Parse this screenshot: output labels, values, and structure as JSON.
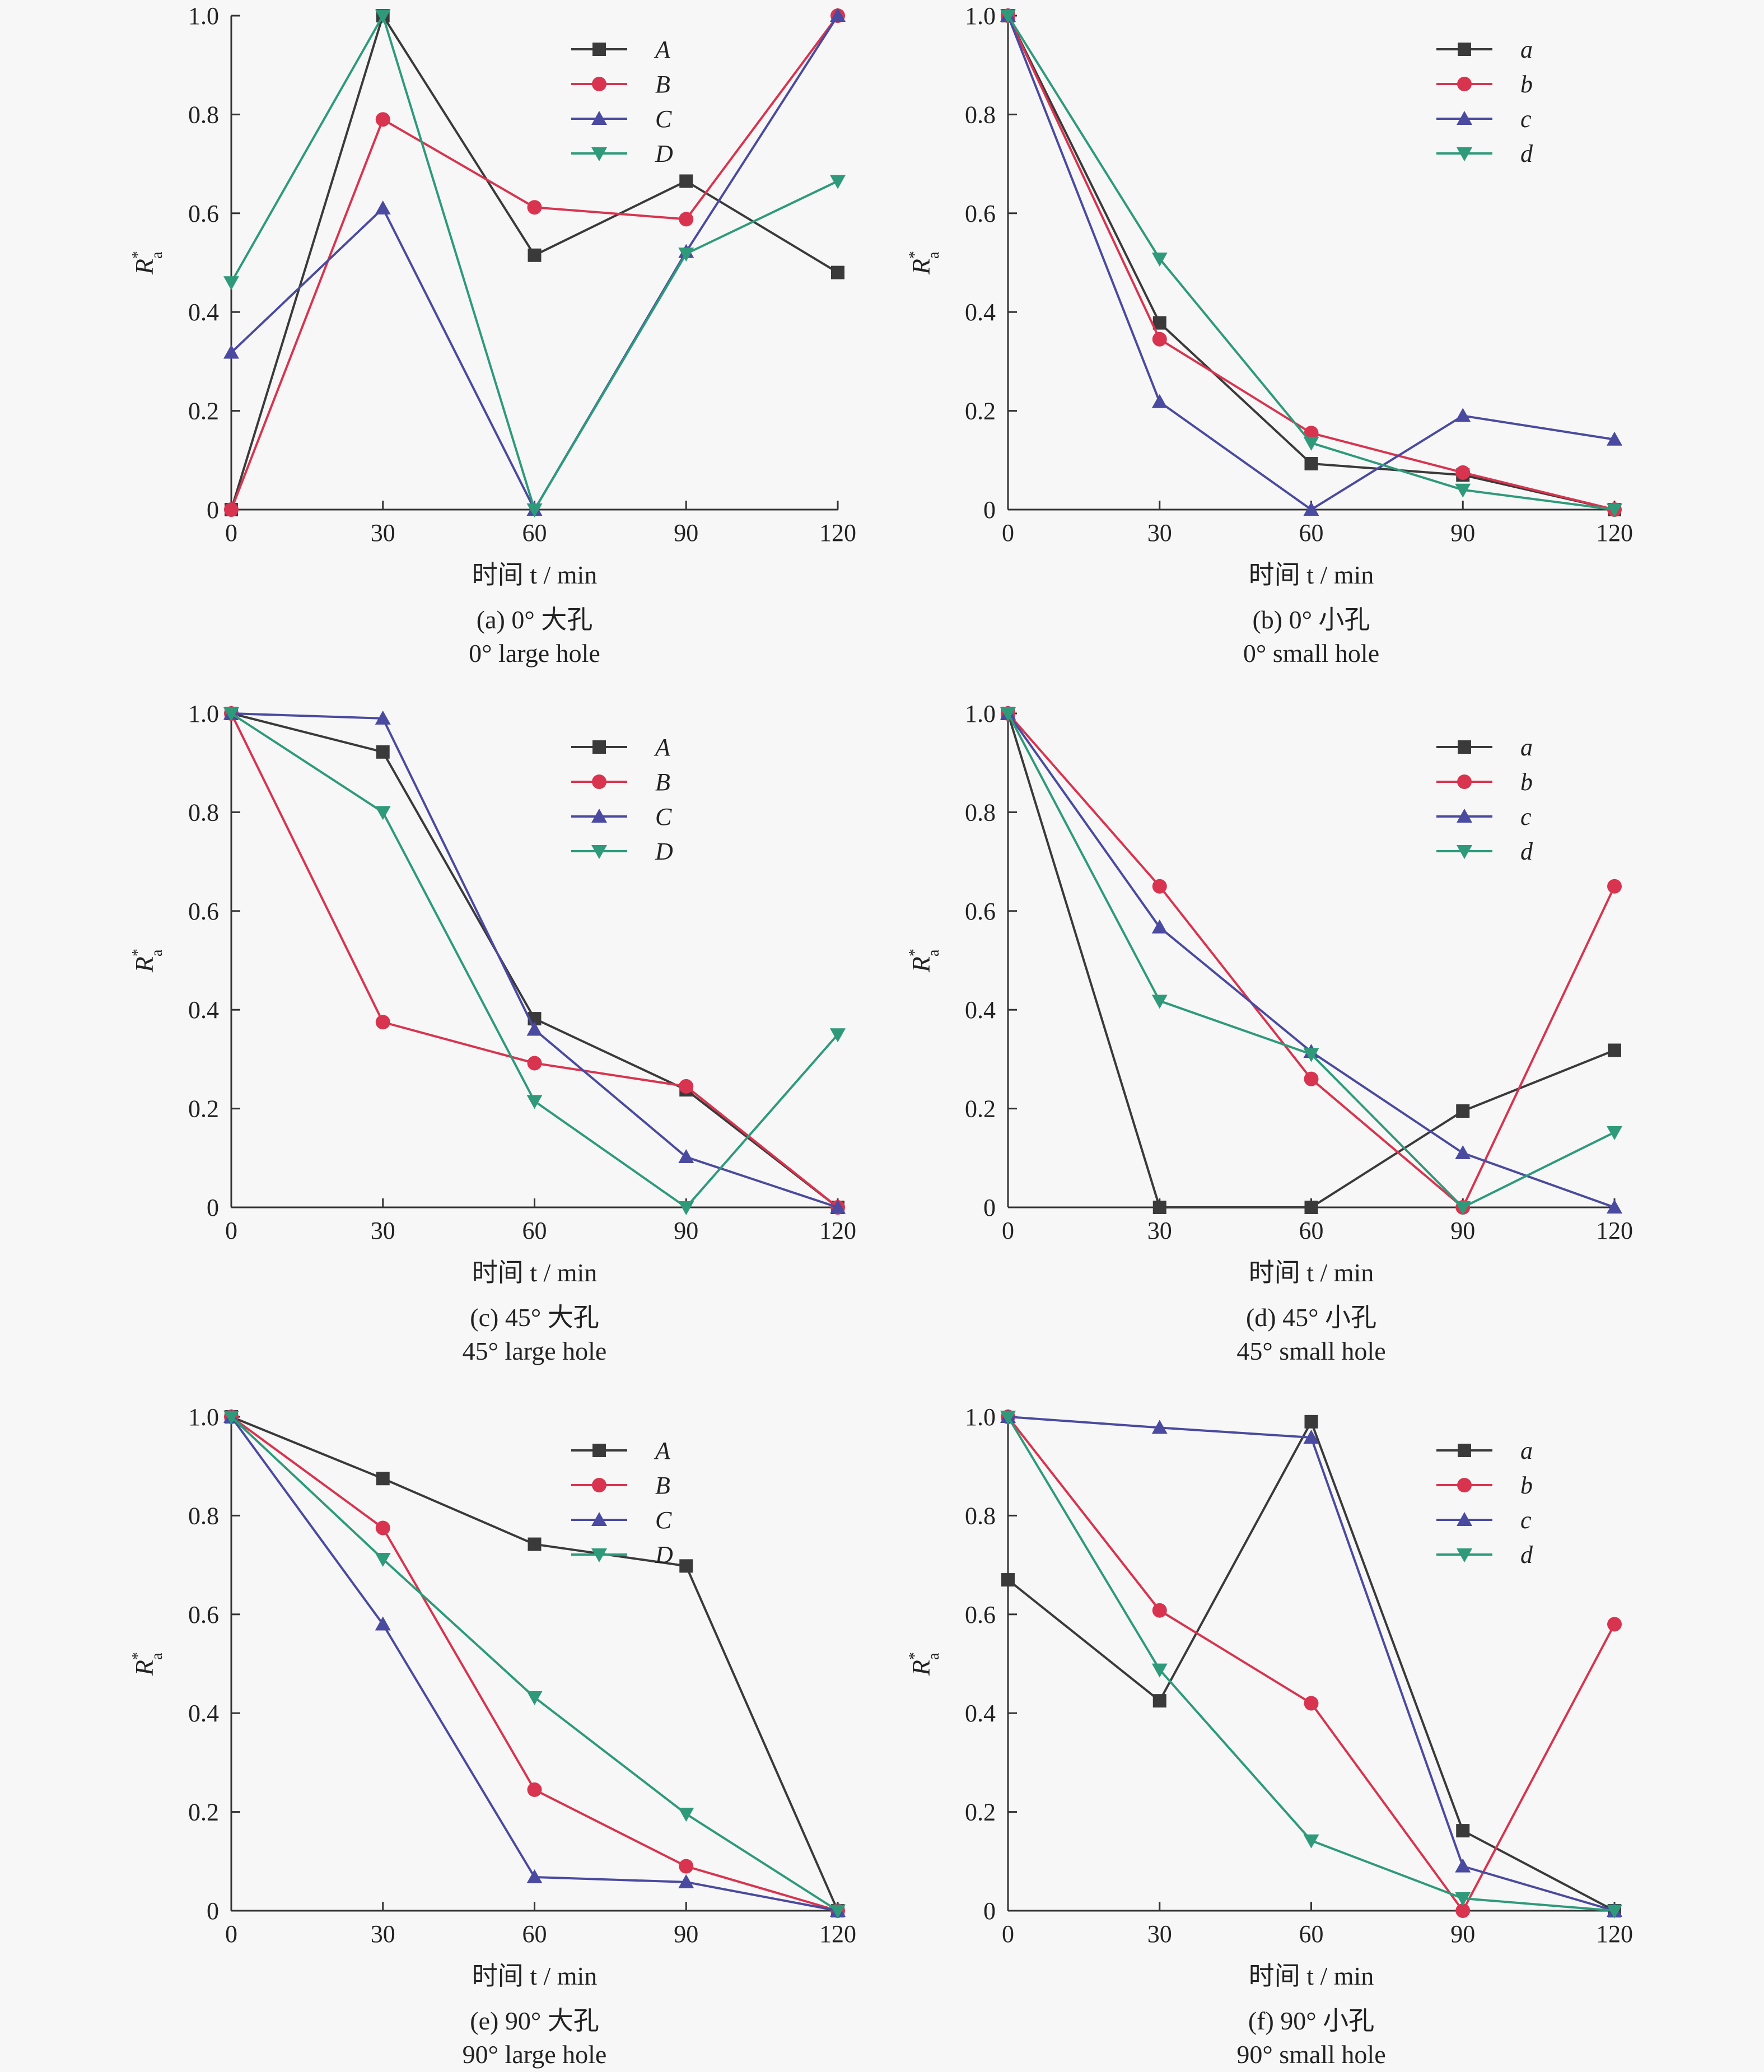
{
  "panel_layout": "3 rows x 2 columns",
  "chart_data": [
    {
      "type": "line",
      "caption_cn": "(a) 0° 大孔",
      "caption_en": "0° large hole",
      "xlabel": "时间 t / min",
      "ylabel": "R*a",
      "x": [
        0,
        30,
        60,
        90,
        120
      ],
      "xticks": [
        "0",
        "30",
        "60",
        "90",
        "120"
      ],
      "yticks": [
        "0",
        "0.2",
        "0.4",
        "0.6",
        "0.8",
        "1.0"
      ],
      "xlim": [
        0,
        120
      ],
      "ylim": [
        0,
        1.0
      ],
      "grid": false,
      "legend_position": "top-center",
      "series": [
        {
          "name": "A",
          "color": "#3a3a3a",
          "marker": "square",
          "values": [
            0,
            1.0,
            0.515,
            0.665,
            0.48
          ]
        },
        {
          "name": "B",
          "color": "#d8344f",
          "marker": "circle",
          "values": [
            0,
            0.79,
            0.612,
            0.588,
            1.0
          ]
        },
        {
          "name": "C",
          "color": "#4a4aa0",
          "marker": "triangle-up",
          "values": [
            0.318,
            0.61,
            0,
            0.522,
            1.0
          ]
        },
        {
          "name": "D",
          "color": "#2e9a7a",
          "marker": "triangle-down",
          "values": [
            0.46,
            1.0,
            0,
            0.518,
            0.665
          ]
        }
      ]
    },
    {
      "type": "line",
      "caption_cn": "(b) 0° 小孔",
      "caption_en": "0° small hole",
      "xlabel": "时间 t / min",
      "ylabel": "R*a",
      "x": [
        0,
        30,
        60,
        90,
        120
      ],
      "xticks": [
        "0",
        "30",
        "60",
        "90",
        "120"
      ],
      "yticks": [
        "0",
        "0.2",
        "0.4",
        "0.6",
        "0.8",
        "1.0"
      ],
      "xlim": [
        0,
        120
      ],
      "ylim": [
        0,
        1.0
      ],
      "grid": false,
      "legend_position": "top-right",
      "series": [
        {
          "name": "a",
          "color": "#3a3a3a",
          "marker": "square",
          "values": [
            1.0,
            0.378,
            0.093,
            0.07,
            0
          ]
        },
        {
          "name": "b",
          "color": "#d8344f",
          "marker": "circle",
          "values": [
            1.0,
            0.345,
            0.155,
            0.075,
            0
          ]
        },
        {
          "name": "c",
          "color": "#4a4aa0",
          "marker": "triangle-up",
          "values": [
            1.0,
            0.218,
            0,
            0.19,
            0.142
          ]
        },
        {
          "name": "d",
          "color": "#2e9a7a",
          "marker": "triangle-down",
          "values": [
            1.0,
            0.508,
            0.135,
            0.04,
            0
          ]
        }
      ]
    },
    {
      "type": "line",
      "caption_cn": "(c) 45° 大孔",
      "caption_en": "45° large hole",
      "xlabel": "时间 t / min",
      "ylabel": "R*a",
      "x": [
        0,
        30,
        60,
        90,
        120
      ],
      "xticks": [
        "0",
        "30",
        "60",
        "90",
        "120"
      ],
      "yticks": [
        "0",
        "0.2",
        "0.4",
        "0.6",
        "0.8",
        "1.0"
      ],
      "xlim": [
        0,
        120
      ],
      "ylim": [
        0,
        1.0
      ],
      "grid": false,
      "legend_position": "top-center",
      "series": [
        {
          "name": "A",
          "color": "#3a3a3a",
          "marker": "square",
          "values": [
            1.0,
            0.922,
            0.382,
            0.238,
            0
          ]
        },
        {
          "name": "B",
          "color": "#d8344f",
          "marker": "circle",
          "values": [
            1.0,
            0.375,
            0.292,
            0.245,
            0
          ]
        },
        {
          "name": "C",
          "color": "#4a4aa0",
          "marker": "triangle-up",
          "values": [
            1.0,
            0.99,
            0.36,
            0.102,
            0
          ]
        },
        {
          "name": "D",
          "color": "#2e9a7a",
          "marker": "triangle-down",
          "values": [
            1.0,
            0.8,
            0.215,
            0,
            0.35
          ]
        }
      ]
    },
    {
      "type": "line",
      "caption_cn": "(d) 45° 小孔",
      "caption_en": "45° small hole",
      "xlabel": "时间 t / min",
      "ylabel": "R*a",
      "x": [
        0,
        30,
        60,
        90,
        120
      ],
      "xticks": [
        "0",
        "30",
        "60",
        "90",
        "120"
      ],
      "yticks": [
        "0",
        "0.2",
        "0.4",
        "0.6",
        "0.8",
        "1.0"
      ],
      "xlim": [
        0,
        120
      ],
      "ylim": [
        0,
        1.0
      ],
      "grid": false,
      "legend_position": "top-right",
      "series": [
        {
          "name": "a",
          "color": "#3a3a3a",
          "marker": "square",
          "values": [
            1.0,
            0,
            0,
            0.195,
            0.318
          ]
        },
        {
          "name": "b",
          "color": "#d8344f",
          "marker": "circle",
          "values": [
            1.0,
            0.65,
            0.26,
            0,
            0.65
          ]
        },
        {
          "name": "c",
          "color": "#4a4aa0",
          "marker": "triangle-up",
          "values": [
            1.0,
            0.567,
            0.315,
            0.11,
            0
          ]
        },
        {
          "name": "d",
          "color": "#2e9a7a",
          "marker": "triangle-down",
          "values": [
            1.0,
            0.418,
            0.31,
            0,
            0.152
          ]
        }
      ]
    },
    {
      "type": "line",
      "caption_cn": "(e) 90° 大孔",
      "caption_en": "90° large hole",
      "xlabel": "时间 t / min",
      "ylabel": "R*a",
      "x": [
        0,
        30,
        60,
        90,
        120
      ],
      "xticks": [
        "0",
        "30",
        "60",
        "90",
        "120"
      ],
      "yticks": [
        "0",
        "0.2",
        "0.4",
        "0.6",
        "0.8",
        "1.0"
      ],
      "xlim": [
        0,
        120
      ],
      "ylim": [
        0,
        1.0
      ],
      "grid": false,
      "legend_position": "top-center",
      "series": [
        {
          "name": "A",
          "color": "#3a3a3a",
          "marker": "square",
          "values": [
            1.0,
            0.875,
            0.742,
            0.698,
            0
          ]
        },
        {
          "name": "B",
          "color": "#d8344f",
          "marker": "circle",
          "values": [
            1.0,
            0.775,
            0.245,
            0.09,
            0
          ]
        },
        {
          "name": "C",
          "color": "#4a4aa0",
          "marker": "triangle-up",
          "values": [
            1.0,
            0.58,
            0.068,
            0.058,
            0
          ]
        },
        {
          "name": "D",
          "color": "#2e9a7a",
          "marker": "triangle-down",
          "values": [
            1.0,
            0.712,
            0.432,
            0.196,
            0
          ]
        }
      ]
    },
    {
      "type": "line",
      "caption_cn": "(f) 90° 小孔",
      "caption_en": "90° small hole",
      "xlabel": "时间 t / min",
      "ylabel": "R*a",
      "x": [
        0,
        30,
        60,
        90,
        120
      ],
      "xticks": [
        "0",
        "30",
        "60",
        "90",
        "120"
      ],
      "yticks": [
        "0",
        "0.2",
        "0.4",
        "0.6",
        "0.8",
        "1.0"
      ],
      "xlim": [
        0,
        120
      ],
      "ylim": [
        0,
        1.0
      ],
      "grid": false,
      "legend_position": "top-right",
      "series": [
        {
          "name": "a",
          "color": "#3a3a3a",
          "marker": "square",
          "values": [
            0.67,
            0.425,
            0.99,
            0.162,
            0
          ]
        },
        {
          "name": "b",
          "color": "#d8344f",
          "marker": "circle",
          "values": [
            1.0,
            0.608,
            0.42,
            0,
            0.58
          ]
        },
        {
          "name": "c",
          "color": "#4a4aa0",
          "marker": "triangle-up",
          "values": [
            1.0,
            0.978,
            0.958,
            0.09,
            0
          ]
        },
        {
          "name": "d",
          "color": "#2e9a7a",
          "marker": "triangle-down",
          "values": [
            1.0,
            0.488,
            0.142,
            0.025,
            0
          ]
        }
      ]
    }
  ]
}
